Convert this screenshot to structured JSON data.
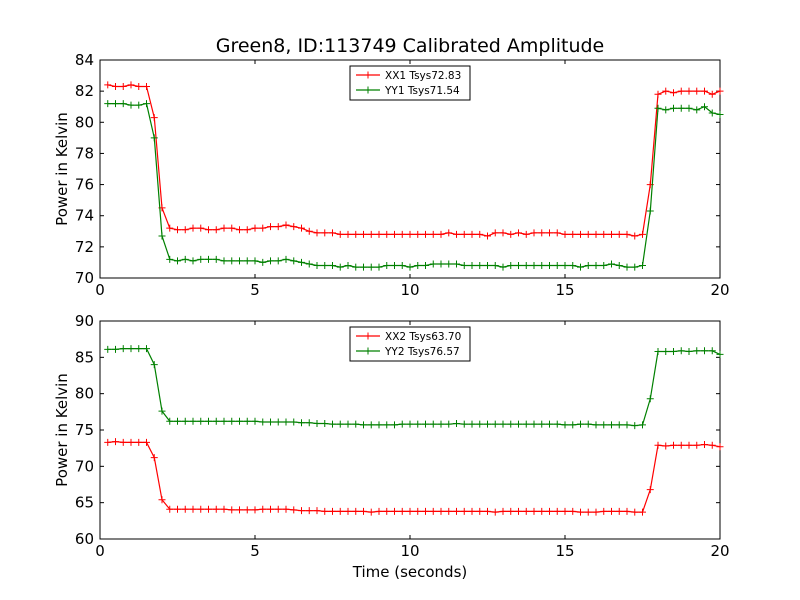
{
  "chart_data": [
    {
      "type": "line",
      "title": "Green8, ID:113749 Calibrated Amplitude",
      "xlabel": "",
      "ylabel": "Power in Kelvin",
      "xlim": [
        0,
        20
      ],
      "ylim": [
        70,
        84
      ],
      "xticks": [
        "0",
        "5",
        "10",
        "15",
        "20"
      ],
      "yticks": [
        "70",
        "72",
        "74",
        "76",
        "78",
        "80",
        "82",
        "84"
      ],
      "legend_position": "top-center",
      "grid": false,
      "x": [
        0.25,
        0.5,
        0.75,
        1.0,
        1.25,
        1.5,
        1.75,
        2.0,
        2.25,
        2.5,
        2.75,
        3.0,
        3.25,
        3.5,
        3.75,
        4.0,
        4.25,
        4.5,
        4.75,
        5.0,
        5.25,
        5.5,
        5.75,
        6.0,
        6.25,
        6.5,
        6.75,
        7.0,
        7.25,
        7.5,
        7.75,
        8.0,
        8.25,
        8.5,
        8.75,
        9.0,
        9.25,
        9.5,
        9.75,
        10.0,
        10.25,
        10.5,
        10.75,
        11.0,
        11.25,
        11.5,
        11.75,
        12.0,
        12.25,
        12.5,
        12.75,
        13.0,
        13.25,
        13.5,
        13.75,
        14.0,
        14.25,
        14.5,
        14.75,
        15.0,
        15.25,
        15.5,
        15.75,
        16.0,
        16.25,
        16.5,
        16.75,
        17.0,
        17.25,
        17.5,
        17.75,
        18.0,
        18.25,
        18.5,
        18.75,
        19.0,
        19.25,
        19.5,
        19.75,
        20.0
      ],
      "series": [
        {
          "name": "XX1 Tsys72.83",
          "color": "#ff0000",
          "values": [
            82.4,
            82.3,
            82.3,
            82.4,
            82.3,
            82.3,
            80.3,
            74.5,
            73.2,
            73.1,
            73.1,
            73.2,
            73.2,
            73.1,
            73.1,
            73.2,
            73.2,
            73.1,
            73.1,
            73.2,
            73.2,
            73.3,
            73.3,
            73.4,
            73.3,
            73.2,
            73.0,
            72.9,
            72.9,
            72.9,
            72.8,
            72.8,
            72.8,
            72.8,
            72.8,
            72.8,
            72.8,
            72.8,
            72.8,
            72.8,
            72.8,
            72.8,
            72.8,
            72.8,
            72.9,
            72.8,
            72.8,
            72.8,
            72.8,
            72.7,
            72.9,
            72.9,
            72.8,
            72.9,
            72.8,
            72.9,
            72.9,
            72.9,
            72.9,
            72.8,
            72.8,
            72.8,
            72.8,
            72.8,
            72.8,
            72.8,
            72.8,
            72.8,
            72.7,
            72.8,
            76.0,
            81.8,
            82.0,
            81.9,
            82.0,
            82.0,
            82.0,
            82.0,
            81.8,
            82.0
          ]
        },
        {
          "name": "YY1 Tsys71.54",
          "color": "#008000",
          "values": [
            81.2,
            81.2,
            81.2,
            81.1,
            81.1,
            81.2,
            79.0,
            72.7,
            71.2,
            71.1,
            71.2,
            71.1,
            71.2,
            71.2,
            71.2,
            71.1,
            71.1,
            71.1,
            71.1,
            71.1,
            71.0,
            71.1,
            71.1,
            71.2,
            71.1,
            71.0,
            70.9,
            70.8,
            70.8,
            70.8,
            70.7,
            70.8,
            70.7,
            70.7,
            70.7,
            70.7,
            70.8,
            70.8,
            70.8,
            70.7,
            70.8,
            70.8,
            70.9,
            70.9,
            70.9,
            70.9,
            70.8,
            70.8,
            70.8,
            70.8,
            70.8,
            70.7,
            70.8,
            70.8,
            70.8,
            70.8,
            70.8,
            70.8,
            70.8,
            70.8,
            70.8,
            70.7,
            70.8,
            70.8,
            70.8,
            70.9,
            70.8,
            70.7,
            70.7,
            70.8,
            74.3,
            80.9,
            80.8,
            80.9,
            80.9,
            80.9,
            80.8,
            81.0,
            80.6,
            80.5
          ]
        }
      ]
    },
    {
      "type": "line",
      "title": "",
      "xlabel": "Time (seconds)",
      "ylabel": "Power in Kelvin",
      "xlim": [
        0,
        20
      ],
      "ylim": [
        60,
        90
      ],
      "xticks": [
        "0",
        "5",
        "10",
        "15",
        "20"
      ],
      "yticks": [
        "60",
        "65",
        "70",
        "75",
        "80",
        "85",
        "90"
      ],
      "legend_position": "top-center",
      "grid": false,
      "x": [
        0.25,
        0.5,
        0.75,
        1.0,
        1.25,
        1.5,
        1.75,
        2.0,
        2.25,
        2.5,
        2.75,
        3.0,
        3.25,
        3.5,
        3.75,
        4.0,
        4.25,
        4.5,
        4.75,
        5.0,
        5.25,
        5.5,
        5.75,
        6.0,
        6.25,
        6.5,
        6.75,
        7.0,
        7.25,
        7.5,
        7.75,
        8.0,
        8.25,
        8.5,
        8.75,
        9.0,
        9.25,
        9.5,
        9.75,
        10.0,
        10.25,
        10.5,
        10.75,
        11.0,
        11.25,
        11.5,
        11.75,
        12.0,
        12.25,
        12.5,
        12.75,
        13.0,
        13.25,
        13.5,
        13.75,
        14.0,
        14.25,
        14.5,
        14.75,
        15.0,
        15.25,
        15.5,
        15.75,
        16.0,
        16.25,
        16.5,
        16.75,
        17.0,
        17.25,
        17.5,
        17.75,
        18.0,
        18.25,
        18.5,
        18.75,
        19.0,
        19.25,
        19.5,
        19.75,
        20.0
      ],
      "series": [
        {
          "name": "XX2 Tsys63.70",
          "color": "#ff0000",
          "values": [
            73.3,
            73.4,
            73.3,
            73.3,
            73.3,
            73.3,
            71.2,
            65.4,
            64.1,
            64.1,
            64.1,
            64.1,
            64.1,
            64.1,
            64.1,
            64.1,
            64.0,
            64.0,
            64.0,
            64.0,
            64.1,
            64.1,
            64.1,
            64.1,
            64.0,
            63.9,
            63.9,
            63.9,
            63.8,
            63.8,
            63.8,
            63.8,
            63.8,
            63.8,
            63.7,
            63.8,
            63.8,
            63.8,
            63.8,
            63.8,
            63.8,
            63.8,
            63.8,
            63.8,
            63.8,
            63.8,
            63.8,
            63.8,
            63.8,
            63.8,
            63.7,
            63.8,
            63.8,
            63.8,
            63.8,
            63.8,
            63.8,
            63.8,
            63.8,
            63.8,
            63.8,
            63.7,
            63.7,
            63.7,
            63.8,
            63.8,
            63.8,
            63.8,
            63.7,
            63.7,
            66.8,
            72.9,
            72.8,
            72.9,
            72.9,
            72.9,
            72.9,
            73.0,
            72.9,
            72.7
          ]
        },
        {
          "name": "YY2 Tsys76.57",
          "color": "#008000",
          "values": [
            86.1,
            86.1,
            86.2,
            86.2,
            86.2,
            86.2,
            84.0,
            77.6,
            76.2,
            76.2,
            76.2,
            76.2,
            76.2,
            76.2,
            76.2,
            76.2,
            76.2,
            76.2,
            76.2,
            76.2,
            76.1,
            76.1,
            76.1,
            76.1,
            76.1,
            76.0,
            76.0,
            75.9,
            75.9,
            75.8,
            75.8,
            75.8,
            75.8,
            75.7,
            75.7,
            75.7,
            75.7,
            75.7,
            75.8,
            75.8,
            75.8,
            75.8,
            75.8,
            75.8,
            75.8,
            75.9,
            75.8,
            75.8,
            75.8,
            75.8,
            75.8,
            75.8,
            75.8,
            75.8,
            75.8,
            75.8,
            75.8,
            75.8,
            75.8,
            75.7,
            75.7,
            75.8,
            75.8,
            75.7,
            75.7,
            75.7,
            75.7,
            75.7,
            75.6,
            75.7,
            79.3,
            85.8,
            85.8,
            85.8,
            85.9,
            85.8,
            85.9,
            85.9,
            85.9,
            85.4
          ]
        }
      ]
    }
  ]
}
